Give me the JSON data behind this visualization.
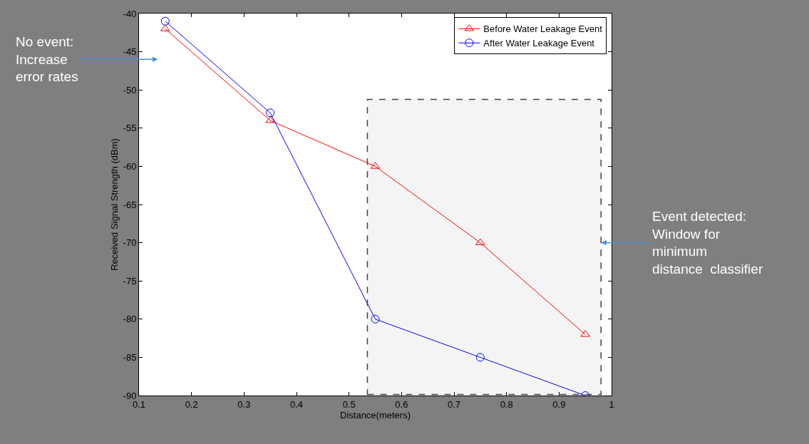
{
  "chart_data": {
    "type": "line",
    "xlabel": "Distance(meters)",
    "ylabel": "Received Signal Strength (dBm)",
    "x": [
      0.15,
      0.35,
      0.55,
      0.75,
      0.95
    ],
    "series": [
      {
        "name": "Before Water Leakage Event",
        "color": "#ff0000",
        "marker": "triangle",
        "values": [
          -42,
          -54,
          -60,
          -70,
          -82
        ]
      },
      {
        "name": "After Water Leakage Event",
        "color": "#0000ff",
        "marker": "circle",
        "values": [
          -41,
          -53,
          -80,
          -85,
          -90
        ]
      }
    ],
    "xlim": [
      0.1,
      1
    ],
    "xticks": [
      0.1,
      0.2,
      0.3,
      0.4,
      0.5,
      0.6,
      0.7,
      0.8,
      0.9,
      1
    ],
    "ylim": [
      -90,
      -40
    ],
    "yticks": [
      -90,
      -85,
      -80,
      -75,
      -70,
      -65,
      -60,
      -55,
      -50,
      -45,
      -40
    ],
    "legend": "top right",
    "line_style": "solid",
    "bands": [
      {
        "axis": "x",
        "from": 0.535,
        "to": 0.98,
        "label": "Event detected:\nWindow for\nminimum\ndistance  classifier",
        "color": "#404040"
      }
    ],
    "annotations": [
      "No event:\nIncrease\nerror rates"
    ]
  }
}
